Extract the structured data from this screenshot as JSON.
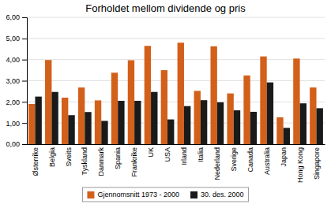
{
  "chart_data": {
    "type": "bar",
    "title": "Forholdet mellom dividende og pris",
    "categories": [
      "Østerrike",
      "Belgia",
      "Sveits",
      "Tyskland",
      "Danmark",
      "Spania",
      "Frankrike",
      "UK",
      "USA",
      "Irland",
      "Italia",
      "Nederland",
      "Sverige",
      "Canada",
      "Australia",
      "Japan",
      "Hong Kong",
      "Singapore"
    ],
    "series": [
      {
        "name": "Gjennomsnitt 1973 - 2000",
        "color": "#D2601A",
        "values": [
          1.9,
          3.98,
          2.2,
          2.68,
          2.07,
          3.38,
          3.97,
          4.65,
          3.5,
          4.8,
          2.52,
          4.63,
          2.4,
          3.25,
          4.15,
          1.27,
          4.05,
          2.68
        ]
      },
      {
        "name": "30. des. 2000",
        "color": "#1a1a1a",
        "values": [
          2.25,
          2.47,
          1.37,
          1.52,
          1.1,
          2.05,
          2.05,
          2.47,
          1.17,
          1.8,
          2.08,
          1.98,
          1.6,
          1.53,
          2.92,
          0.77,
          1.93,
          1.7
        ]
      }
    ],
    "ylim": [
      0,
      6.0
    ],
    "yticks": [
      {
        "value": 0.0,
        "label": "0,00"
      },
      {
        "value": 1.0,
        "label": "1,00"
      },
      {
        "value": 2.0,
        "label": "2,00"
      },
      {
        "value": 3.0,
        "label": "3,00"
      },
      {
        "value": 4.0,
        "label": "4,00"
      },
      {
        "value": 5.0,
        "label": "5,00"
      },
      {
        "value": 6.0,
        "label": "6,00"
      }
    ],
    "grid": true,
    "legend": "bottom"
  }
}
